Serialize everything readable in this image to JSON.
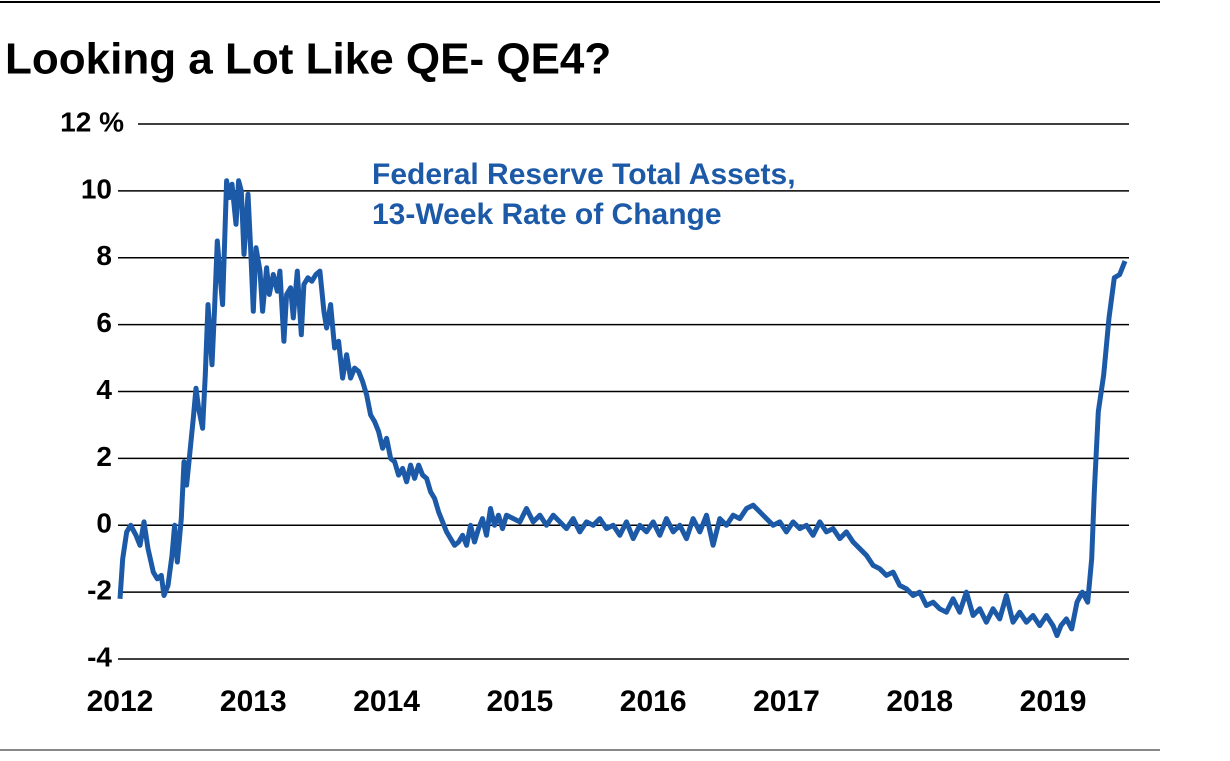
{
  "chart_data": {
    "type": "line",
    "title": "Looking a Lot Like QE- QE4?",
    "annotation": [
      "Federal Reserve Total Assets,",
      "13-Week Rate of Change"
    ],
    "color": "#1c5aa8",
    "xlim": [
      2012,
      2019.57
    ],
    "xticks": [
      2012,
      2013,
      2014,
      2015,
      2016,
      2017,
      2018,
      2019
    ],
    "ylim": [
      -4,
      12
    ],
    "yticks": [
      -4,
      -2,
      0,
      2,
      4,
      6,
      8,
      10,
      {
        "value": 12,
        "label": "12 %"
      }
    ],
    "grid": true,
    "x": [
      2012.0,
      2012.02,
      2012.05,
      2012.08,
      2012.12,
      2012.15,
      2012.18,
      2012.21,
      2012.25,
      2012.28,
      2012.31,
      2012.33,
      2012.36,
      2012.39,
      2012.41,
      2012.43,
      2012.46,
      2012.48,
      2012.5,
      2012.52,
      2012.55,
      2012.57,
      2012.59,
      2012.62,
      2012.64,
      2012.66,
      2012.69,
      2012.71,
      2012.73,
      2012.75,
      2012.77,
      2012.8,
      2012.82,
      2012.84,
      2012.87,
      2012.89,
      2012.91,
      2012.93,
      2012.96,
      2012.98,
      2013.0,
      2013.02,
      2013.05,
      2013.07,
      2013.1,
      2013.12,
      2013.15,
      2013.18,
      2013.2,
      2013.23,
      2013.25,
      2013.28,
      2013.3,
      2013.33,
      2013.36,
      2013.38,
      2013.41,
      2013.44,
      2013.47,
      2013.5,
      2013.53,
      2013.55,
      2013.58,
      2013.61,
      2013.64,
      2013.67,
      2013.7,
      2013.73,
      2013.76,
      2013.79,
      2013.82,
      2013.85,
      2013.88,
      2013.91,
      2013.94,
      2013.97,
      2014.0,
      2014.03,
      2014.06,
      2014.09,
      2014.12,
      2014.15,
      2014.18,
      2014.21,
      2014.24,
      2014.27,
      2014.3,
      2014.33,
      2014.36,
      2014.39,
      2014.42,
      2014.45,
      2014.48,
      2014.51,
      2014.54,
      2014.57,
      2014.6,
      2014.63,
      2014.66,
      2014.69,
      2014.72,
      2014.75,
      2014.78,
      2014.81,
      2014.84,
      2014.87,
      2014.9,
      2015.0,
      2015.05,
      2015.1,
      2015.15,
      2015.2,
      2015.25,
      2015.3,
      2015.35,
      2015.4,
      2015.45,
      2015.5,
      2015.55,
      2015.6,
      2015.65,
      2015.7,
      2015.75,
      2015.8,
      2015.85,
      2015.9,
      2015.95,
      2016.0,
      2016.05,
      2016.1,
      2016.15,
      2016.2,
      2016.25,
      2016.3,
      2016.35,
      2016.4,
      2016.45,
      2016.5,
      2016.55,
      2016.6,
      2016.65,
      2016.7,
      2016.75,
      2016.8,
      2016.85,
      2016.9,
      2016.95,
      2017.0,
      2017.05,
      2017.1,
      2017.15,
      2017.2,
      2017.25,
      2017.3,
      2017.35,
      2017.4,
      2017.45,
      2017.5,
      2017.55,
      2017.6,
      2017.65,
      2017.7,
      2017.75,
      2017.8,
      2017.85,
      2017.9,
      2017.95,
      2018.0,
      2018.05,
      2018.1,
      2018.15,
      2018.2,
      2018.25,
      2018.3,
      2018.35,
      2018.4,
      2018.45,
      2018.5,
      2018.55,
      2018.6,
      2018.65,
      2018.7,
      2018.75,
      2018.8,
      2018.85,
      2018.9,
      2018.95,
      2019.0,
      2019.03,
      2019.06,
      2019.1,
      2019.14,
      2019.18,
      2019.22,
      2019.26,
      2019.29,
      2019.31,
      2019.34,
      2019.38,
      2019.42,
      2019.46,
      2019.5,
      2019.54
    ],
    "values": [
      -2.2,
      -1.0,
      -0.2,
      0.0,
      -0.3,
      -0.6,
      0.1,
      -0.7,
      -1.4,
      -1.6,
      -1.5,
      -2.1,
      -1.8,
      -0.9,
      0.0,
      -1.1,
      0.2,
      1.9,
      1.2,
      2.0,
      3.2,
      4.1,
      3.5,
      2.9,
      4.5,
      6.6,
      4.8,
      6.5,
      8.5,
      7.5,
      6.6,
      10.3,
      9.8,
      10.2,
      9.0,
      10.3,
      10.0,
      8.1,
      9.9,
      8.3,
      6.4,
      8.3,
      7.6,
      6.4,
      7.7,
      6.9,
      7.5,
      7.0,
      7.6,
      5.5,
      6.9,
      7.1,
      6.2,
      7.6,
      5.7,
      7.2,
      7.4,
      7.3,
      7.5,
      7.6,
      6.4,
      5.9,
      6.6,
      5.3,
      5.5,
      4.4,
      5.1,
      4.4,
      4.7,
      4.6,
      4.3,
      3.9,
      3.3,
      3.1,
      2.8,
      2.3,
      2.6,
      2.0,
      1.9,
      1.5,
      1.7,
      1.3,
      1.8,
      1.4,
      1.8,
      1.5,
      1.4,
      1.0,
      0.8,
      0.4,
      0.1,
      -0.2,
      -0.4,
      -0.6,
      -0.5,
      -0.3,
      -0.6,
      0.0,
      -0.5,
      -0.1,
      0.2,
      -0.3,
      0.5,
      0.0,
      0.3,
      -0.1,
      0.3,
      0.1,
      0.5,
      0.1,
      0.3,
      0.0,
      0.3,
      0.1,
      -0.1,
      0.2,
      -0.2,
      0.1,
      0.0,
      0.2,
      -0.1,
      0.0,
      -0.3,
      0.1,
      -0.4,
      0.0,
      -0.2,
      0.1,
      -0.3,
      0.2,
      -0.2,
      0.0,
      -0.4,
      0.2,
      -0.2,
      0.3,
      -0.6,
      0.2,
      0.0,
      0.3,
      0.2,
      0.5,
      0.6,
      0.4,
      0.2,
      0.0,
      0.1,
      -0.2,
      0.1,
      -0.1,
      0.0,
      -0.3,
      0.1,
      -0.2,
      -0.1,
      -0.4,
      -0.2,
      -0.5,
      -0.7,
      -0.9,
      -1.2,
      -1.3,
      -1.5,
      -1.4,
      -1.8,
      -1.9,
      -2.1,
      -2.0,
      -2.4,
      -2.3,
      -2.5,
      -2.6,
      -2.2,
      -2.6,
      -2.0,
      -2.7,
      -2.5,
      -2.9,
      -2.5,
      -2.8,
      -2.1,
      -2.9,
      -2.6,
      -2.9,
      -2.7,
      -3.0,
      -2.7,
      -3.0,
      -3.3,
      -3.0,
      -2.8,
      -3.1,
      -2.3,
      -2.0,
      -2.3,
      -1.0,
      1.0,
      3.4,
      4.5,
      6.2,
      7.4,
      7.5,
      7.9
    ]
  }
}
